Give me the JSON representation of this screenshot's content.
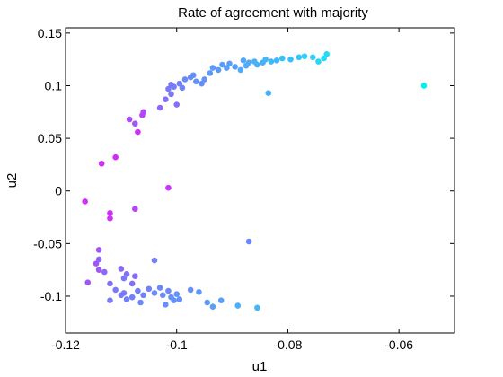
{
  "chart_data": {
    "type": "scatter",
    "title": "Rate of agreement with majority",
    "xlabel": "u1",
    "ylabel": "u2",
    "xlim": [
      -0.12,
      -0.05
    ],
    "ylim": [
      -0.135,
      0.155
    ],
    "xticks": [
      -0.12,
      -0.1,
      -0.08,
      -0.06
    ],
    "xtick_labels": [
      "-0.12",
      "-0.1",
      "-0.08",
      "-0.06"
    ],
    "yticks": [
      -0.1,
      -0.05,
      0,
      0.05,
      0.1,
      0.15
    ],
    "ytick_labels": [
      "-0.1",
      "-0.05",
      "0",
      "0.05",
      "0.1",
      "0.15"
    ],
    "grid": false,
    "legend": false,
    "colormap": "cool",
    "points": [
      {
        "x": -0.0555,
        "y": 0.1,
        "color": "#00f0f6"
      },
      {
        "x": -0.073,
        "y": 0.13,
        "color": "#21dbf8"
      },
      {
        "x": -0.0735,
        "y": 0.126,
        "color": "#21dbf8"
      },
      {
        "x": -0.0745,
        "y": 0.123,
        "color": "#28d4f8"
      },
      {
        "x": -0.0755,
        "y": 0.127,
        "color": "#2fcdf8"
      },
      {
        "x": -0.077,
        "y": 0.128,
        "color": "#2fcdf8"
      },
      {
        "x": -0.078,
        "y": 0.127,
        "color": "#35c6f8"
      },
      {
        "x": -0.0795,
        "y": 0.125,
        "color": "#3bbff8"
      },
      {
        "x": -0.081,
        "y": 0.126,
        "color": "#3bbff8"
      },
      {
        "x": -0.082,
        "y": 0.124,
        "color": "#43b7f8"
      },
      {
        "x": -0.083,
        "y": 0.123,
        "color": "#43b7f8"
      },
      {
        "x": -0.084,
        "y": 0.125,
        "color": "#43b7f8"
      },
      {
        "x": -0.0845,
        "y": 0.122,
        "color": "#4ab0f8"
      },
      {
        "x": -0.0855,
        "y": 0.12,
        "color": "#4ab0f8"
      },
      {
        "x": -0.086,
        "y": 0.123,
        "color": "#4ab0f8"
      },
      {
        "x": -0.087,
        "y": 0.122,
        "color": "#52a9f8"
      },
      {
        "x": -0.0875,
        "y": 0.119,
        "color": "#52a9f8"
      },
      {
        "x": -0.088,
        "y": 0.124,
        "color": "#52a9f8"
      },
      {
        "x": -0.0885,
        "y": 0.115,
        "color": "#52a9f8"
      },
      {
        "x": -0.0895,
        "y": 0.118,
        "color": "#599ff8"
      },
      {
        "x": -0.0905,
        "y": 0.121,
        "color": "#599ff8"
      },
      {
        "x": -0.091,
        "y": 0.117,
        "color": "#599ff8"
      },
      {
        "x": -0.0918,
        "y": 0.12,
        "color": "#599ff8"
      },
      {
        "x": -0.0925,
        "y": 0.115,
        "color": "#5e99f8"
      },
      {
        "x": -0.0935,
        "y": 0.117,
        "color": "#5e99f8"
      },
      {
        "x": -0.094,
        "y": 0.112,
        "color": "#5e99f8"
      },
      {
        "x": -0.095,
        "y": 0.106,
        "color": "#6391f8"
      },
      {
        "x": -0.0955,
        "y": 0.102,
        "color": "#6391f8"
      },
      {
        "x": -0.0965,
        "y": 0.104,
        "color": "#6391f8"
      },
      {
        "x": -0.097,
        "y": 0.11,
        "color": "#6391f8"
      },
      {
        "x": -0.0975,
        "y": 0.108,
        "color": "#6b89f8"
      },
      {
        "x": -0.0985,
        "y": 0.106,
        "color": "#6b89f8"
      },
      {
        "x": -0.099,
        "y": 0.098,
        "color": "#7181f8"
      },
      {
        "x": -0.0995,
        "y": 0.102,
        "color": "#7181f8"
      },
      {
        "x": -0.1005,
        "y": 0.099,
        "color": "#7181f8"
      },
      {
        "x": -0.101,
        "y": 0.101,
        "color": "#7a79f8"
      },
      {
        "x": -0.1015,
        "y": 0.097,
        "color": "#7a79f8"
      },
      {
        "x": -0.101,
        "y": 0.092,
        "color": "#7a79f8"
      },
      {
        "x": -0.102,
        "y": 0.087,
        "color": "#8271f8"
      },
      {
        "x": -0.1,
        "y": 0.082,
        "color": "#8271f8"
      },
      {
        "x": -0.103,
        "y": 0.079,
        "color": "#8a69f8"
      },
      {
        "x": -0.0835,
        "y": 0.093,
        "color": "#4ab0f8"
      },
      {
        "x": -0.106,
        "y": 0.075,
        "color": "#b246f8"
      },
      {
        "x": -0.1062,
        "y": 0.072,
        "color": "#b246f8"
      },
      {
        "x": -0.1085,
        "y": 0.068,
        "color": "#ac4cf8"
      },
      {
        "x": -0.1075,
        "y": 0.064,
        "color": "#9f57f8"
      },
      {
        "x": -0.107,
        "y": 0.056,
        "color": "#cc33f8"
      },
      {
        "x": -0.111,
        "y": 0.032,
        "color": "#d22cf8"
      },
      {
        "x": -0.1135,
        "y": 0.026,
        "color": "#d22cf8"
      },
      {
        "x": -0.1015,
        "y": 0.003,
        "color": "#cc33f8"
      },
      {
        "x": -0.1165,
        "y": -0.01,
        "color": "#d22cf8"
      },
      {
        "x": -0.1075,
        "y": -0.017,
        "color": "#b246f8"
      },
      {
        "x": -0.112,
        "y": -0.021,
        "color": "#d22cf8"
      },
      {
        "x": -0.112,
        "y": -0.026,
        "color": "#d22cf8"
      },
      {
        "x": -0.087,
        "y": -0.048,
        "color": "#6b89f8"
      },
      {
        "x": -0.114,
        "y": -0.056,
        "color": "#9f57f8"
      },
      {
        "x": -0.114,
        "y": -0.065,
        "color": "#8a69f8"
      },
      {
        "x": -0.1145,
        "y": -0.069,
        "color": "#9f57f8"
      },
      {
        "x": -0.114,
        "y": -0.075,
        "color": "#9f57f8"
      },
      {
        "x": -0.11,
        "y": -0.074,
        "color": "#8a69f8"
      },
      {
        "x": -0.113,
        "y": -0.077,
        "color": "#8a69f8"
      },
      {
        "x": -0.109,
        "y": -0.079,
        "color": "#8271f8"
      },
      {
        "x": -0.104,
        "y": -0.066,
        "color": "#7181f8"
      },
      {
        "x": -0.1075,
        "y": -0.081,
        "color": "#8a69f8"
      },
      {
        "x": -0.1095,
        "y": -0.083,
        "color": "#7a79f8"
      },
      {
        "x": -0.116,
        "y": -0.087,
        "color": "#9f57f8"
      },
      {
        "x": -0.112,
        "y": -0.088,
        "color": "#8271f8"
      },
      {
        "x": -0.108,
        "y": -0.088,
        "color": "#8271f8"
      },
      {
        "x": -0.111,
        "y": -0.094,
        "color": "#7a79f8"
      },
      {
        "x": -0.1095,
        "y": -0.097,
        "color": "#7a79f8"
      },
      {
        "x": -0.107,
        "y": -0.095,
        "color": "#7181f8"
      },
      {
        "x": -0.106,
        "y": -0.099,
        "color": "#7181f8"
      },
      {
        "x": -0.105,
        "y": -0.093,
        "color": "#7181f8"
      },
      {
        "x": -0.104,
        "y": -0.097,
        "color": "#6b89f8"
      },
      {
        "x": -0.103,
        "y": -0.092,
        "color": "#6b89f8"
      },
      {
        "x": -0.1025,
        "y": -0.099,
        "color": "#6b89f8"
      },
      {
        "x": -0.1015,
        "y": -0.095,
        "color": "#6b89f8"
      },
      {
        "x": -0.101,
        "y": -0.101,
        "color": "#6391f8"
      },
      {
        "x": -0.1005,
        "y": -0.104,
        "color": "#6391f8"
      },
      {
        "x": -0.1,
        "y": -0.098,
        "color": "#6391f8"
      },
      {
        "x": -0.0995,
        "y": -0.103,
        "color": "#6391f8"
      },
      {
        "x": -0.108,
        "y": -0.101,
        "color": "#7181f8"
      },
      {
        "x": -0.109,
        "y": -0.103,
        "color": "#7181f8"
      },
      {
        "x": -0.11,
        "y": -0.099,
        "color": "#7a79f8"
      },
      {
        "x": -0.112,
        "y": -0.104,
        "color": "#7a79f8"
      },
      {
        "x": -0.1065,
        "y": -0.106,
        "color": "#6b89f8"
      },
      {
        "x": -0.102,
        "y": -0.108,
        "color": "#6391f8"
      },
      {
        "x": -0.0975,
        "y": -0.094,
        "color": "#6391f8"
      },
      {
        "x": -0.096,
        "y": -0.096,
        "color": "#5e99f8"
      },
      {
        "x": -0.0945,
        "y": -0.106,
        "color": "#5e99f8"
      },
      {
        "x": -0.092,
        "y": -0.104,
        "color": "#599ff8"
      },
      {
        "x": -0.0935,
        "y": -0.11,
        "color": "#599ff8"
      },
      {
        "x": -0.089,
        "y": -0.109,
        "color": "#4ab0f8"
      },
      {
        "x": -0.0855,
        "y": -0.111,
        "color": "#43b7f8"
      }
    ]
  }
}
